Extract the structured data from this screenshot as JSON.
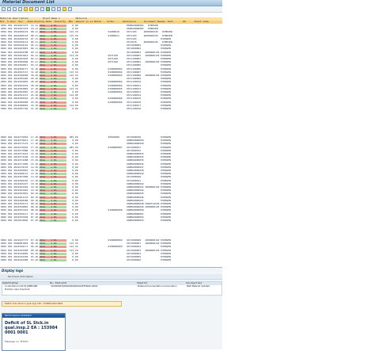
{
  "window": {
    "title": "Material Document List"
  },
  "list": {
    "header_1": "Material Description          Plant Name 1           Material",
    "header_2": "MvT  S SLoc  Doc.  Item Posting Date  Quantity  EUn  Amount in LC Batch    Order      Reference      Document Header Text       PO      Plant name",
    "rows": [
      {
        "t": "0001 001 4914607273  19.11.2014    1 EA           0,00                                  ES0MA0000004   EVERSEN",
        "q": "red"
      },
      {
        "t": "0001 001 4914607278  10.11.2014    1 EA           0,00                                  OS9MA0000004   EVERSEN",
        "q": "grn"
      },
      {
        "t": "0001 001 4914606119  08.11.2014    1 EA         113,39                     01000010     OST1103     4000000345   EVERSEN",
        "q": "red"
      },
      {
        "t": "0001 001 4914606123  08.11.2014    1 EA         113,39                     01000011     OST1103     4000000345   EVERSEN",
        "q": "grn"
      },
      {
        "t": "0001 001 4914606153  07.11.2014    1 EA           0,00                                  OST1103                 EVERSEN",
        "q": "red"
      },
      {
        "t": "0001 001 5097029112  06.11.2014    1 EA           0,00                                  OST1078     4000000145   EVERSEN",
        "q": "grn"
      },
      {
        "t": "0001 001 5097029181  06.11.2014    1 EA           0,00                                  OST1000002              EVERSEN",
        "q": "red"
      },
      {
        "t": "0001 001 4914603001  06.11.2014    1 EA           0,00                                  OST1000002              EVERSEN",
        "q": "grn"
      },
      {
        "t": "0001 001 4914602188  05.11.2014    1 EA           0,00                                  OST1000002   4000000145 EVERSEN",
        "q": "red"
      },
      {
        "t": "0001 001 4914601812  04.11.2014    1 EA         113,39                     0ST1106      OST1100003   4000000145 EVERSEN",
        "q": "grn"
      },
      {
        "t": "0001 001 4914601044  04.11.2014    1 EA           0,00                     0ST1106      OST1100003              EVERSEN",
        "q": "red"
      },
      {
        "t": "0001 001 4914600990  03.11.2014    1 EA           0,00                     0ST1106      OST1100004   4000000145 EVERSEN",
        "q": "grn"
      },
      {
        "t": "0001 001 4914599817  03.11.2014    1 EA           0,00                                  OST1100005              EVERSEN",
        "q": "red"
      },
      {
        "t": "0001 001 4914598777  31.10.2014    1 EA           0,00                     0100000002   OST1100006              EVERSEN",
        "q": "red"
      },
      {
        "t": "0001 001 4914597117  31.10.2014    1 EA         113,39                     0100000002   OST1100007              EVERSEN",
        "q": "grn"
      },
      {
        "t": "0001 001 4914596609  30.10.2014    1 EA         113,39                     0100000002   OST1100008   4000000145 EVERSEN",
        "q": "red"
      },
      {
        "t": "0001 001 4914595440  29.10.2014    1 EA           0,00                                  OST1100009              EVERSEN",
        "q": "grn"
      },
      {
        "t": "0001 001 4914594001  28.10.2014    1 EA           0,00                     0100000004   OST1100010              EVERSEN",
        "q": "red"
      },
      {
        "t": "0001 001 4914593218  28.10.2014    1 EA           0,00                     0100000004   OST1100011              EVERSEN",
        "q": "grn"
      },
      {
        "t": "0001 001 4914592881  27.10.2014    1 EA         113,39                     0100000005   OST1100012              EVERSEN",
        "q": "red"
      },
      {
        "t": "0001 001 4914592007  27.10.2014    1 EA           0,00                     0100000005   OST1100013              EVERSEN",
        "q": "grn"
      },
      {
        "t": "0001 001 4914591113  24.10.2014    1 EA         114,00                                  OST1100014              EVERSEN",
        "q": "red"
      },
      {
        "t": "0001 001 4914590310  23.10.2014    1 EA           0,00                     0100000006   OST1100015              EVERSEN",
        "q": "grn"
      },
      {
        "t": "0001 001 4914589998  23.10.2014    1 EA           0,00                     0100000006   OST1100016              EVERSEN",
        "q": "red"
      },
      {
        "t": "0001 001 4914588810  22.10.2014    1 EA         114,00                                  OST1100017              EVERSEN",
        "q": "red"
      },
      {
        "t": "0001 001 4914587702  21.10.2014    1 EA           0,00                                  OST1100018              EVERSEN",
        "q": "grn"
      }
    ],
    "rows_b": [
      {
        "t": "0001 001 4914579954  17.10.2014    1 EA         283,90                     50822006     OST1000030              EVERSEN",
        "q": "red"
      },
      {
        "t": "0001 001 4914578011  17.10.2014    1 EA           0,00                                  OS8MA0000030            EVERSEN",
        "q": "grn"
      },
      {
        "t": "0001 001 4914577121  17.10.2014    1 EA           0,00                                  OS8MA0000030            EVERSEN",
        "q": "red"
      },
      {
        "t": "0001 001 4914576643  17.10.2014    1 EA         283,90                     0100000007   OST1000031              EVERSEN",
        "q": "grn"
      },
      {
        "t": "0001 001 4914575880  16.10.2014    1 EA           0,00                                  OST1000032              EVERSEN",
        "q": "red"
      },
      {
        "t": "0001 001 4914574412  16.10.2014    1 EA           0,00                                  OS8MA0000033            EVERSEN",
        "q": "grn"
      },
      {
        "t": "0001 001 4914573100  15.10.2014    1 EA           0,00                                  OS8MA0000034            EVERSEN",
        "q": "red"
      },
      {
        "t": "0001 001 4914572288  15.10.2014    1 EA           0,00                                  OS8MA0000035            EVERSEN",
        "q": "grn"
      },
      {
        "t": "0001 001 4914571005  15.10.2014    1 EA           0,00                                  OS8MA0000036            EVERSEN",
        "q": "red"
      },
      {
        "t": "0001 001 4914570118  14.10.2014    1 EA           0,00                                  OS8MA0000037            EVERSEN",
        "q": "grn"
      },
      {
        "t": "0001 001 4914569001  14.10.2014    1 EA           0,00                                  OS8MA0000038            EVERSEN",
        "q": "red"
      },
      {
        "t": "0001 001 4914568112  14.10.2014    1 EA           0,00                                  OS8MA0000039            EVERSEN",
        "q": "grn"
      },
      {
        "t": "0001 001 4914567009  13.10.2014    1 EA           0,00                                  OST1000040              EVERSEN",
        "q": "red"
      },
      {
        "t": "0001 001 4914566187  13.10.2014    1 EA           0,00                                  OST1000041              EVERSEN",
        "q": "grn"
      },
      {
        "t": "0001 001 4914565227  10.10.2014    1 EA           0,00                                  OS8MA0000042            EVERSEN",
        "q": "red"
      },
      {
        "t": "0001 001 4914564302  10.10.2014    1 EA           0,00                                  OS8MA0000043 4000000145 EVERSEN",
        "q": "grn"
      },
      {
        "t": "0001 001 4914563010  10.10.2014    1 EA           0,00                                  OS8MA0000044            EVERSEN",
        "q": "red"
      },
      {
        "t": "0001 001 4914562019  09.10.2014    1 EA           0,00                                  OS8MA0000045            EVERSEN",
        "q": "grn"
      },
      {
        "t": "0001 001 4914561115  09.10.2014    1 EA           0,00                                  OS8MA0000046            EVERSEN",
        "q": "red"
      },
      {
        "t": "0001 001 4914560280  09.10.2014    1 EA           0,00                                  OS8MA0000047            EVERSEN",
        "q": "grn"
      },
      {
        "t": "0001 001 4914559113  08.10.2014    1 EA           0,00                                  OS8MA0000048 5000714536 EVERSEN",
        "q": "red"
      },
      {
        "t": "0001 001 4914558881  08.10.2014    1 EA           0,00                                  OS8MA0000049 4000000145 EVERSEN",
        "q": "grn"
      },
      {
        "t": "0001 001 4914557223  08.10.2014    1 EA           0,00                     0100000008   OS8MA0000050            EVERSEN",
        "q": "red"
      },
      {
        "t": "0001 001 4914556117  07.10.2014    1 EA           0,00                                  OS8MA0000051            EVERSEN",
        "q": "grn"
      },
      {
        "t": "0001 001 4914555030  07.10.2014    1 EA           0,00                                  OS8MA0000052            EVERSEN",
        "q": "red"
      },
      {
        "t": "0001 001 4914554002  07.10.2014    1 EA           0,00                                  OS8MA0000053            EVERSEN",
        "q": "grn"
      }
    ],
    "rows_c": [
      {
        "t": "0001 001 4914547773  07.10.2014    1 EA           0,00                     0100000009   OST1000060   4000000145 EVERSEN",
        "q": "red"
      },
      {
        "t": "0001 001 5000081003  06.10.2014    1 EA         113,39                                  OST1000061   4000000145 EVERSEN",
        "q": "grn"
      },
      {
        "t": "0001 001 4914546171  06.10.2014    1 EA         113,39                     0100000009   OST1000062              EVERSEN",
        "q": "red"
      },
      {
        "t": "0001 001 4914545560  06.10.2014    1 EA         113,39                                  OST1000063   4000000145 EVERSEN",
        "q": "red"
      },
      {
        "t": "0001 001 4914544802  04.10.2014    1 EA           0,00                                  OST1000064              EVERSEN",
        "q": "grn"
      },
      {
        "t": "0001 001 4914543393  03.10.2014    1 EA           0,00                                  OST1000065              EVERSEN",
        "q": "red"
      },
      {
        "t": "0001 001 4914542009  03.10.2014    1 EA           0,00                                  OST1000066              EVERSEN",
        "q": "grn"
      }
    ]
  },
  "panel": {
    "title": "Display logs",
    "toolbar_text": "Technical Information",
    "col1": "Date/Time/User",
    "col2": "Nu... External ID",
    "col3": "Object txt",
    "col4": "Sub-object text",
    "row1_date": "11.09.2014 11:20:03 JDEBUSER",
    "row1_id": "3100000035/000000000010/DEFI0001LI0000",
    "row1_obj": "Material Documentation Consumption",
    "row1_sub": "BAPI Material Updated",
    "row2": "Problem class Important",
    "redbar": "Deficit of SL Stock in qual.insp.2 EA : 153984 0001 0001"
  },
  "popup": {
    "header": "Performance Assistant",
    "message": "Deficit of SL Stck.in qual.insp.2 EA : 153984 0001 0001",
    "footer": "Message no. M7021"
  }
}
